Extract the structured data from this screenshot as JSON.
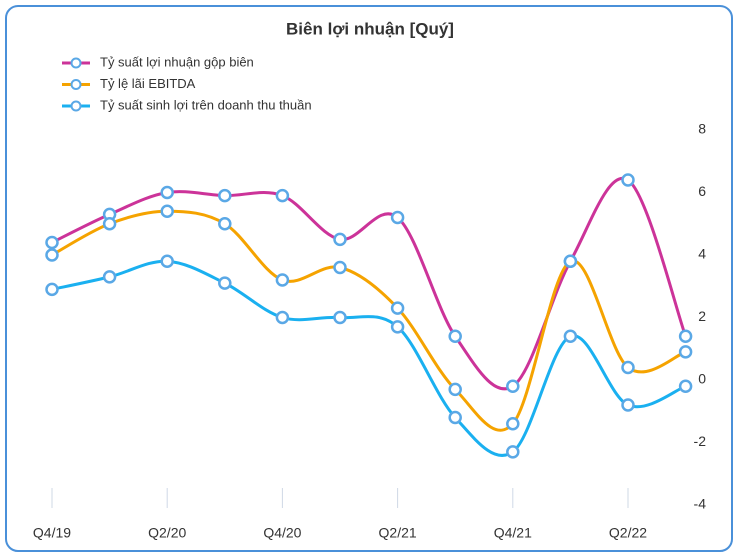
{
  "chart_data": {
    "type": "line",
    "title": "Biên lợi nhuận [Quý]",
    "categories": [
      "Q4/19",
      null,
      "Q2/20",
      null,
      "Q4/20",
      null,
      "Q2/21",
      null,
      "Q4/21",
      null,
      "Q2/22",
      null
    ],
    "series": [
      {
        "name": "Tỷ suất lợi nhuận gộp biên",
        "color": "#cc3399",
        "values": [
          4.4,
          5.3,
          6.0,
          5.9,
          5.9,
          4.5,
          5.2,
          1.4,
          -0.2,
          3.8,
          6.4,
          1.4
        ]
      },
      {
        "name": "Tỷ lệ lãi EBITDA",
        "color": "#f5a300",
        "values": [
          4.0,
          5.0,
          5.4,
          5.0,
          3.2,
          3.6,
          2.3,
          -0.3,
          -1.4,
          3.8,
          0.4,
          0.9
        ]
      },
      {
        "name": "Tỷ suất sinh lợi trên doanh thu thuần",
        "color": "#1ab0f0",
        "values": [
          2.9,
          3.3,
          3.8,
          3.1,
          2.0,
          2.0,
          1.7,
          -1.2,
          -2.3,
          1.4,
          -0.8,
          -0.2
        ]
      }
    ],
    "ylim": [
      -4,
      8
    ],
    "yticks": [
      -4,
      -2,
      0,
      2,
      4,
      6,
      8
    ],
    "legend": "top-left",
    "grid": false
  }
}
